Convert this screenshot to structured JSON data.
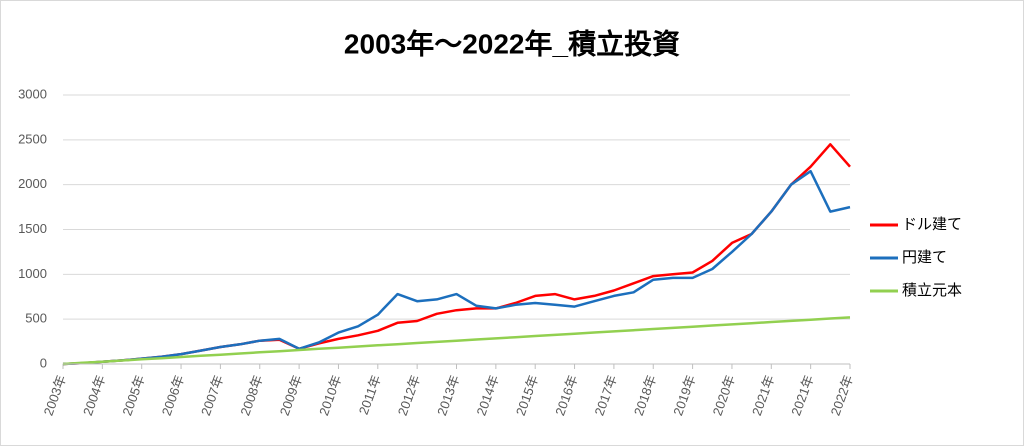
{
  "chart_data": {
    "type": "line",
    "title": "2003年～2022年_積立投資",
    "categories": [
      "2003年",
      null,
      "2004年",
      null,
      "2005年",
      null,
      "2006年",
      null,
      "2007年",
      null,
      "2008年",
      null,
      "2009年",
      null,
      "2010年",
      null,
      "2011年",
      null,
      "2012年",
      null,
      "2013年",
      null,
      "2014年",
      null,
      "2015年",
      null,
      "2016年",
      null,
      "2017年",
      null,
      "2018年",
      null,
      "2019年",
      null,
      "2020年",
      null,
      "2021年",
      null,
      "2021年",
      null,
      "2022年"
    ],
    "series": [
      {
        "name": "ドル建て",
        "color": "#ff0000",
        "values": [
          0,
          10,
          25,
          40,
          60,
          80,
          110,
          150,
          190,
          220,
          260,
          270,
          170,
          230,
          280,
          320,
          370,
          460,
          480,
          560,
          600,
          620,
          620,
          680,
          760,
          780,
          720,
          760,
          820,
          900,
          980,
          1000,
          1020,
          1150,
          1350,
          1450,
          1700,
          2000,
          2200,
          2450,
          2200
        ]
      },
      {
        "name": "円建て",
        "color": "#1c6fbd",
        "values": [
          0,
          10,
          25,
          40,
          60,
          80,
          110,
          150,
          190,
          220,
          260,
          280,
          170,
          240,
          350,
          420,
          550,
          780,
          700,
          720,
          780,
          650,
          620,
          660,
          680,
          660,
          640,
          700,
          760,
          800,
          940,
          960,
          960,
          1060,
          1250,
          1450,
          1700,
          2000,
          2150,
          1700,
          1750
        ]
      },
      {
        "name": "積立元本",
        "color": "#92d050",
        "values": [
          0,
          13,
          26,
          39,
          52,
          65,
          78,
          91,
          104,
          117,
          130,
          143,
          156,
          169,
          182,
          195,
          208,
          221,
          234,
          247,
          260,
          273,
          286,
          299,
          312,
          325,
          338,
          351,
          364,
          377,
          390,
          403,
          416,
          429,
          442,
          455,
          468,
          481,
          494,
          507,
          520
        ]
      }
    ],
    "ylim": [
      0,
      3000
    ],
    "yticks": [
      0,
      500,
      1000,
      1500,
      2000,
      2500,
      3000
    ],
    "grid": true,
    "legend": "right"
  }
}
